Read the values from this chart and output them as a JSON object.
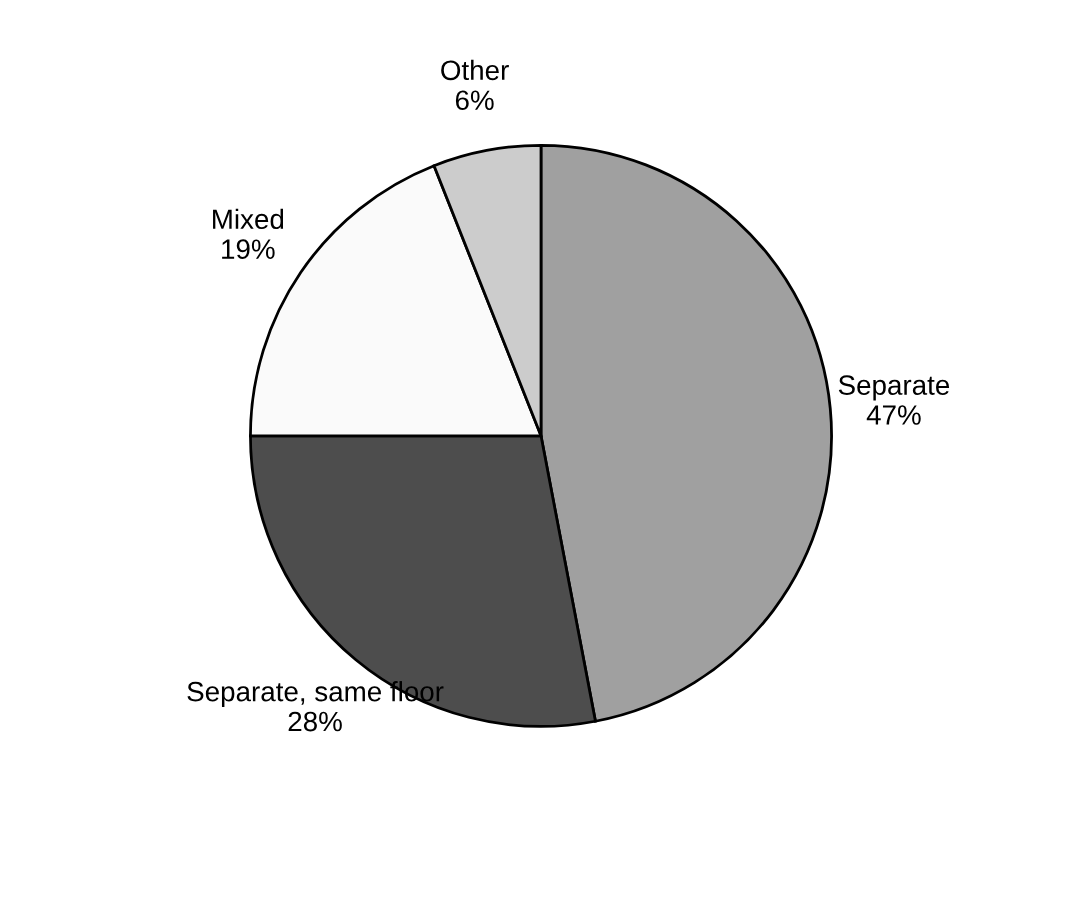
{
  "chart_data": {
    "type": "pie",
    "categories": [
      "Separate",
      "Separate, same floor",
      "Mixed",
      "Other"
    ],
    "values": [
      47,
      28,
      19,
      6
    ],
    "value_labels": [
      "47%",
      "28%",
      "19%",
      "6%"
    ],
    "colors": [
      "#a0a0a0",
      "#4d4d4d",
      "#fafafa",
      "#cccccc"
    ]
  }
}
